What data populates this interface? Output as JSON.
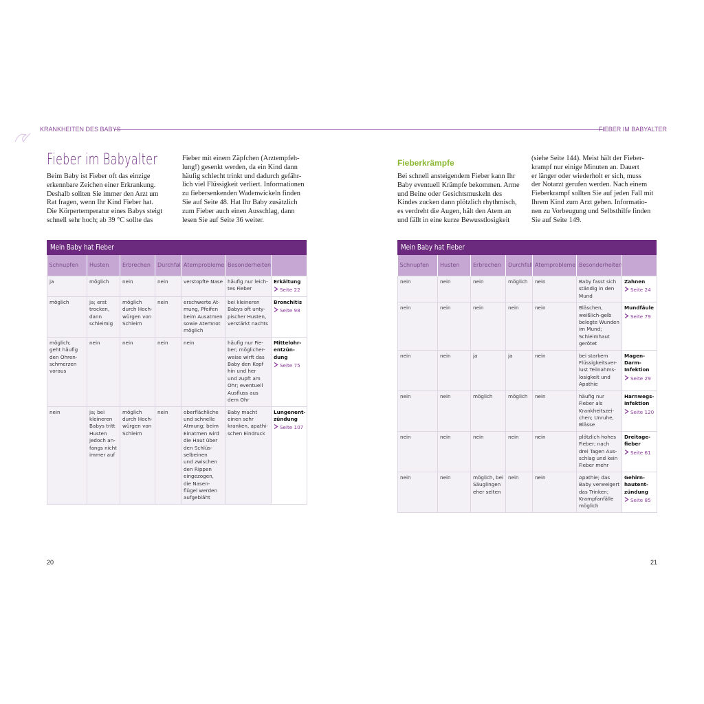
{
  "header": {
    "left": "KRANKHEITEN DES BABYS",
    "right": "FIEBER IM BABYALTER"
  },
  "left": {
    "title": "Fieber im Babyalter",
    "col1": [
      "Beim Baby ist Fieber oft das einzige",
      "erkennbare Zeichen einer Erkrankung.",
      "Deshalb sollten Sie immer den Arzt um",
      "Rat fragen, wenn Ihr Kind Fieber hat.",
      "Die Körpertemperatur eines Babys steigt",
      "schnell sehr hoch; ab 39 °C sollte das"
    ],
    "col2": [
      "Fieber mit einem Zäpfchen (Arztempfeh-",
      "lung!) gesenkt werden, da ein Kind dann",
      "häufig schlecht trinkt und dadurch gefähr-",
      "lich viel Flüssigkeit verliert. Informationen",
      "zu fiebersenkenden Wadenwickeln finden",
      "Sie auf Seite 48. Hat Ihr Baby zusätzlich",
      "zum Fieber auch einen Ausschlag, dann",
      "lesen Sie auf Seite 36 weiter."
    ],
    "table": {
      "title": "Mein Baby hat Fieber",
      "headers": [
        "Schnupfen",
        "Husten",
        "Erbrechen",
        "Durchfall",
        "Atemprobleme",
        "Besonderheiten"
      ],
      "rows": [
        {
          "cells": [
            [
              "ja"
            ],
            [
              "möglich"
            ],
            [
              "nein"
            ],
            [
              "nein"
            ],
            [
              "verstopfte Nase"
            ],
            [
              "häufig nur leich-",
              "tes Fieber"
            ]
          ],
          "diagnosis": [
            "Erkältung"
          ],
          "page": "Seite 22"
        },
        {
          "cells": [
            [
              "möglich"
            ],
            [
              "ja; erst",
              "trocken,",
              "dann",
              "schleimig"
            ],
            [
              "möglich",
              "durch Hoch-",
              "würgen von",
              "Schleim"
            ],
            [
              "nein"
            ],
            [
              "erschwerte At-",
              "mung, Pfeifen",
              "beim Ausatmen",
              "sowie Atemnot",
              "möglich"
            ],
            [
              "bei kleineren",
              "Babys oft unty-",
              "pischer Husten,",
              "verstärkt nachts"
            ]
          ],
          "diagnosis": [
            "Bronchitis"
          ],
          "page": "Seite 98"
        },
        {
          "cells": [
            [
              "möglich;",
              "geht häufig",
              "den Ohren-",
              "schmerzen",
              "voraus"
            ],
            [
              "nein"
            ],
            [
              "nein"
            ],
            [
              "nein"
            ],
            [
              "nein"
            ],
            [
              "häufig nur Fie-",
              "ber; möglicher-",
              "weise wirft das",
              "Baby den Kopf",
              "hin und her",
              "und zupft am",
              "Ohr; eventuell",
              "Ausfluss aus",
              "dem Ohr"
            ]
          ],
          "diagnosis": [
            "Mittelohr-",
            "entzün-",
            "dung"
          ],
          "page": "Seite 75"
        },
        {
          "cells": [
            [
              "nein"
            ],
            [
              "ja; bei",
              "kleineren",
              "Babys tritt",
              "Husten",
              "jedoch an-",
              "fangs nicht",
              "immer auf"
            ],
            [
              "möglich",
              "durch Hoch-",
              "würgen von",
              "Schleim"
            ],
            [
              "nein"
            ],
            [
              "oberflächliche",
              "und schnelle",
              "Atmung; beim",
              "Einatmen wird",
              "die Haut über",
              "den Schlüs-",
              "selbeinen",
              "und zwischen",
              "den Rippen",
              "eingezogen,",
              "die Nasen-",
              "flügel werden",
              "aufgebläht"
            ],
            [
              "Baby macht",
              "einen sehr",
              "kranken, apathi-",
              "schen Eindruck"
            ]
          ],
          "diagnosis": [
            "Lungenent-",
            "zündung"
          ],
          "page": "Seite 107"
        }
      ]
    },
    "page_number": "20"
  },
  "right": {
    "heading": "Fieberkrämpfe",
    "col1": [
      "Bei schnell ansteigendem Fieber kann Ihr",
      "Baby eventuell Krämpfe bekommen. Arme",
      "und Beine oder Gesichtsmuskeln des",
      "Kindes zucken dann plötzlich rhythmisch,",
      "es verdreht die Augen, hält den Atem an",
      "und fällt in eine kurze Bewusstlosigkeit"
    ],
    "col2": [
      "(siehe Seite 144). Meist hält der Fieber-",
      "krampf nur einige Minuten an. Dauert",
      "er länger oder wiederholt er sich, muss",
      "der Notarzt gerufen werden. Nach einem",
      "Fieberkrampf sollten Sie auf jeden Fall mit",
      "Ihrem Kind zum Arzt gehen. Informatio-",
      "nen zu Vorbeugung und Selbsthilfe finden",
      "Sie auf Seite 149."
    ],
    "table": {
      "title": "Mein Baby hat Fieber",
      "headers": [
        "Schnupfen",
        "Husten",
        "Erbrechen",
        "Durchfall",
        "Atemprobleme",
        "Besonderheiten"
      ],
      "rows": [
        {
          "cells": [
            [
              "nein"
            ],
            [
              "nein"
            ],
            [
              "nein"
            ],
            [
              "möglich"
            ],
            [
              "nein"
            ],
            [
              "Baby fasst sich",
              "ständig in den",
              "Mund"
            ]
          ],
          "diagnosis": [
            "Zahnen"
          ],
          "page": "Seite 24"
        },
        {
          "cells": [
            [
              "nein"
            ],
            [
              "nein"
            ],
            [
              "nein"
            ],
            [
              "nein"
            ],
            [
              "nein"
            ],
            [
              "Bläschen,",
              "weißlich-gelb",
              "belegte Wunden",
              "im Mund;",
              "Schleimhaut",
              "gerötet"
            ]
          ],
          "diagnosis": [
            "Mundfäule"
          ],
          "page": "Seite 79"
        },
        {
          "cells": [
            [
              "nein"
            ],
            [
              "nein"
            ],
            [
              "ja"
            ],
            [
              "ja"
            ],
            [
              "nein"
            ],
            [
              "bei starkem",
              "Flüssigkeitsver-",
              "lust Teilnahms-",
              "losigkeit und",
              "Apathie"
            ]
          ],
          "diagnosis": [
            "Magen-",
            "Darm-",
            "Infektion"
          ],
          "page": "Seite 29"
        },
        {
          "cells": [
            [
              "nein"
            ],
            [
              "nein"
            ],
            [
              "möglich"
            ],
            [
              "möglich"
            ],
            [
              "nein"
            ],
            [
              "häufig nur",
              "Fieber als",
              "Krankheitszei-",
              "chen; Unruhe,",
              "Blässe"
            ]
          ],
          "diagnosis": [
            "Harnwegs-",
            "infektion"
          ],
          "page": "Seite 120"
        },
        {
          "cells": [
            [
              "nein"
            ],
            [
              "nein"
            ],
            [
              "nein"
            ],
            [
              "nein"
            ],
            [
              "nein"
            ],
            [
              "plötzlich hohes",
              "Fieber; nach",
              "drei Tagen Aus-",
              "schlag und kein",
              "Fieber mehr"
            ]
          ],
          "diagnosis": [
            "Dreitage-",
            "fieber"
          ],
          "page": "Seite 61"
        },
        {
          "cells": [
            [
              "nein"
            ],
            [
              "nein"
            ],
            [
              "möglich, bei",
              "Säuglingen",
              "eher selten"
            ],
            [
              "nein"
            ],
            [
              "nein"
            ],
            [
              "Apathie; das",
              "Baby verweigert",
              "das Trinken;",
              "Krampfanfälle",
              "möglich"
            ]
          ],
          "diagnosis": [
            "Gehirn-",
            "hautent-",
            "zündung"
          ],
          "page": "Seite 85"
        }
      ]
    },
    "page_number": "21"
  }
}
